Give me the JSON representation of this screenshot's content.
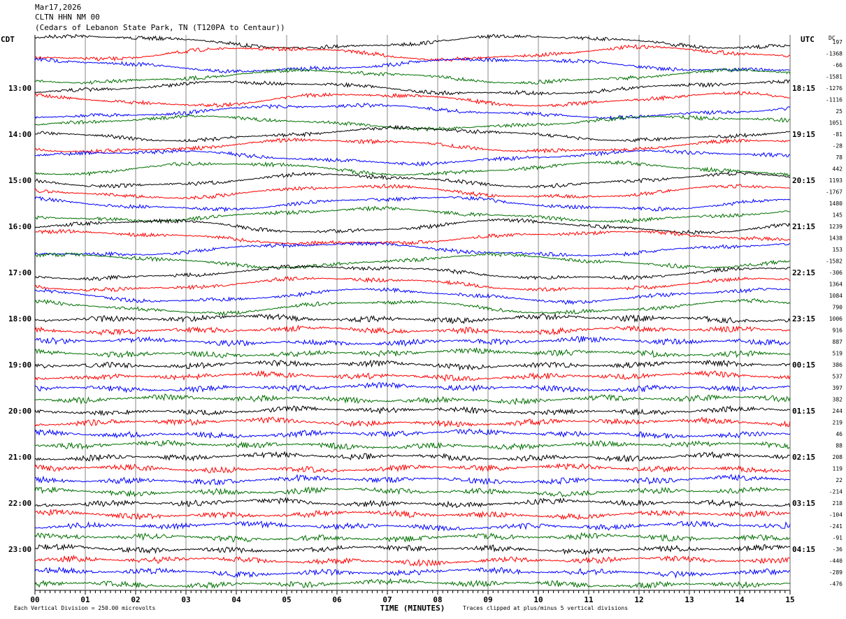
{
  "header": {
    "date": "Mar17,2026",
    "station": "CLTN HHN NM 00",
    "location": "(Cedars of Lebanon State Park, TN (T120PA to Centaur))"
  },
  "chart_data": {
    "type": "line",
    "title": "CLTN HHN NM 00 helicorder",
    "xlabel": "TIME (MINUTES)",
    "xlim": [
      0,
      15
    ],
    "x_ticks": [
      "00",
      "01",
      "02",
      "03",
      "04",
      "05",
      "06",
      "07",
      "08",
      "09",
      "10",
      "11",
      "12",
      "13",
      "14",
      "15"
    ],
    "left_axis_label": "CDT",
    "right_axis_label": "UTC",
    "dc_label": "DC",
    "cdt_ticks": [
      "13:00",
      "14:00",
      "15:00",
      "16:00",
      "17:00",
      "18:00",
      "19:00",
      "20:00",
      "21:00",
      "22:00",
      "23:00"
    ],
    "utc_ticks": [
      "18:15",
      "19:15",
      "20:15",
      "21:15",
      "22:15",
      "23:15",
      "00:15",
      "01:15",
      "02:15",
      "03:15",
      "04:15"
    ],
    "traces_per_hour": 4,
    "trace_colors": [
      "#000000",
      "#ff0000",
      "#0000ff",
      "#007000"
    ],
    "dc_offsets": [
      197,
      -1368,
      -66,
      -1581,
      -1276,
      -1116,
      25,
      1051,
      -81,
      -28,
      78,
      442,
      1193,
      -1767,
      1480,
      145,
      1239,
      1438,
      153,
      -1582,
      -306,
      1364,
      1084,
      790,
      1006,
      916,
      887,
      519,
      386,
      537,
      397,
      382,
      244,
      219,
      46,
      88,
      208,
      119,
      22,
      -214,
      218,
      -104,
      -241,
      -91,
      -36,
      -440,
      -289,
      -476
    ]
  },
  "footer": {
    "scale": "Each Vertical Division =  250.00 microvolts",
    "clip": "Traces clipped at plus/minus 5 vertical divisions"
  }
}
